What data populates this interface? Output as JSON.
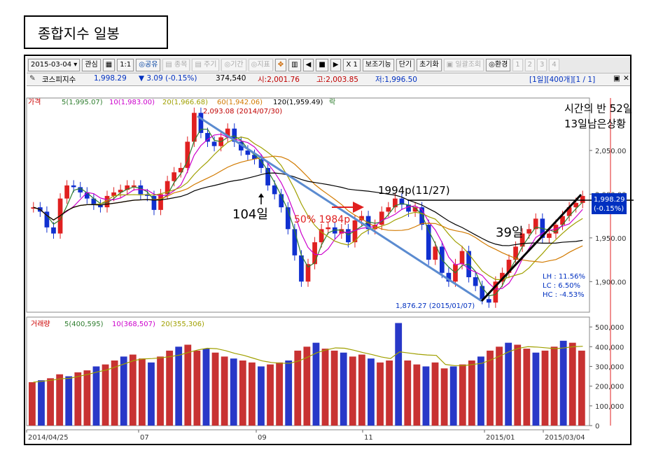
{
  "header": {
    "title": "종합지수 일봉"
  },
  "toolbar": {
    "date": "2015-03-04",
    "items": [
      "관심",
      "▦",
      "1:1",
      "◎공유",
      "▤ 종목",
      "▤ 주기",
      "◎기간",
      "◎지표",
      "✥",
      "▥",
      "◀",
      "■",
      "▶",
      "X 1",
      "보조기능",
      "단기",
      "초기화",
      "▣ 일괄조회",
      "◎환경",
      "1",
      "2",
      "3",
      "4"
    ]
  },
  "infobar": {
    "name": "코스피지수",
    "price": "1,998.29",
    "change": "▼ 3.09 (-0.15%)",
    "volume": "374,540",
    "open": "시:2,001.76",
    "high": "고:2,003.85",
    "low": "저:1,996.50",
    "range": "[1일][400개][1 / 1]"
  },
  "price_panel": {
    "legend": [
      {
        "label": "가격",
        "color": "#cc0000"
      },
      {
        "label": "5(1,995.07)",
        "color": "#2e7d2e"
      },
      {
        "label": "10(1,983.00)",
        "color": "#cc00cc"
      },
      {
        "label": "20(1,966.68)",
        "color": "#a0a000"
      },
      {
        "label": "60(1,942.06)",
        "color": "#d27a00"
      },
      {
        "label": "120(1,959.49)",
        "color": "#000000"
      },
      {
        "label": "락",
        "color": "#2e7d2e"
      }
    ],
    "high_label": "2,093.08 (2014/07/30)",
    "low_label": "1,876.27 (2015/01/07)",
    "last_price": "1,998.29",
    "last_change": "(-0.15%)",
    "lh": "LH : 11.56%",
    "lc": "LC : 6.50%",
    "hc": "HC : -4.53%"
  },
  "volume_panel": {
    "legend": [
      {
        "label": "거래량",
        "color": "#cc0000"
      },
      {
        "label": "5(400,595)",
        "color": "#2e7d2e"
      },
      {
        "label": "10(368,507)",
        "color": "#cc00cc"
      },
      {
        "label": "20(355,306)",
        "color": "#a0a000"
      }
    ]
  },
  "annotations": {
    "note1": "시간의 반 52일",
    "note2": "13일남은상황",
    "days104": "104일",
    "fifty": "50% 1984p",
    "level1994": "1994p(11/27)",
    "days39": "39일"
  },
  "chart_data": [
    {
      "type": "line",
      "title": "",
      "y_ticks": [
        2050,
        2000,
        1950,
        1900
      ],
      "ylim": [
        1865,
        2110
      ],
      "x_ticks": [
        "2014/04/25",
        "07",
        "09",
        "11",
        "2015/01",
        "2015/03/04"
      ],
      "key_points": [
        {
          "date": "2014/07/30",
          "value": 2093.08
        },
        {
          "date": "2015/01/07",
          "value": 1876.27
        },
        {
          "date": "2015/03/04",
          "value": 1998.29
        }
      ],
      "series": [
        {
          "name": "가격",
          "approx_values": [
            1985,
            1980,
            1962,
            1955,
            1995,
            2010,
            2008,
            2002,
            1995,
            1988,
            1985,
            1998,
            2002,
            2005,
            2010,
            2010,
            2000,
            1998,
            1982,
            2000,
            2015,
            2025,
            2030,
            2060,
            2093,
            2070,
            2060,
            2055,
            2065,
            2075,
            2060,
            2050,
            2045,
            2040,
            2030,
            2010,
            2000,
            1985,
            1960,
            1930,
            1900,
            1920,
            1945,
            1960,
            1962,
            1955,
            1960,
            1945,
            1970,
            1975,
            1960,
            1965,
            1980,
            1985,
            1995,
            1988,
            1980,
            1985,
            1965,
            1925,
            1940,
            1910,
            1900,
            1920,
            1935,
            1905,
            1895,
            1880,
            1876,
            1900,
            1910,
            1925,
            1940,
            1955,
            1960,
            1972,
            1950,
            1955,
            1965,
            1975,
            1985,
            1990,
            1998
          ]
        }
      ]
    },
    {
      "type": "bar",
      "title": "",
      "series_name": "거래량",
      "y_ticks": [
        500000,
        400000,
        300000,
        200000,
        100000,
        0
      ],
      "ylim": [
        0,
        550000
      ],
      "approx_values": [
        220000,
        230000,
        240000,
        260000,
        250000,
        270000,
        280000,
        300000,
        310000,
        330000,
        350000,
        360000,
        340000,
        320000,
        350000,
        380000,
        400000,
        410000,
        380000,
        390000,
        370000,
        350000,
        340000,
        330000,
        320000,
        300000,
        310000,
        320000,
        330000,
        380000,
        400000,
        420000,
        390000,
        380000,
        370000,
        350000,
        360000,
        340000,
        320000,
        330000,
        520000,
        330000,
        310000,
        300000,
        320000,
        290000,
        300000,
        310000,
        330000,
        350000,
        380000,
        400000,
        420000,
        410000,
        390000,
        370000,
        380000,
        400000,
        430000,
        420000,
        380000
      ]
    }
  ]
}
